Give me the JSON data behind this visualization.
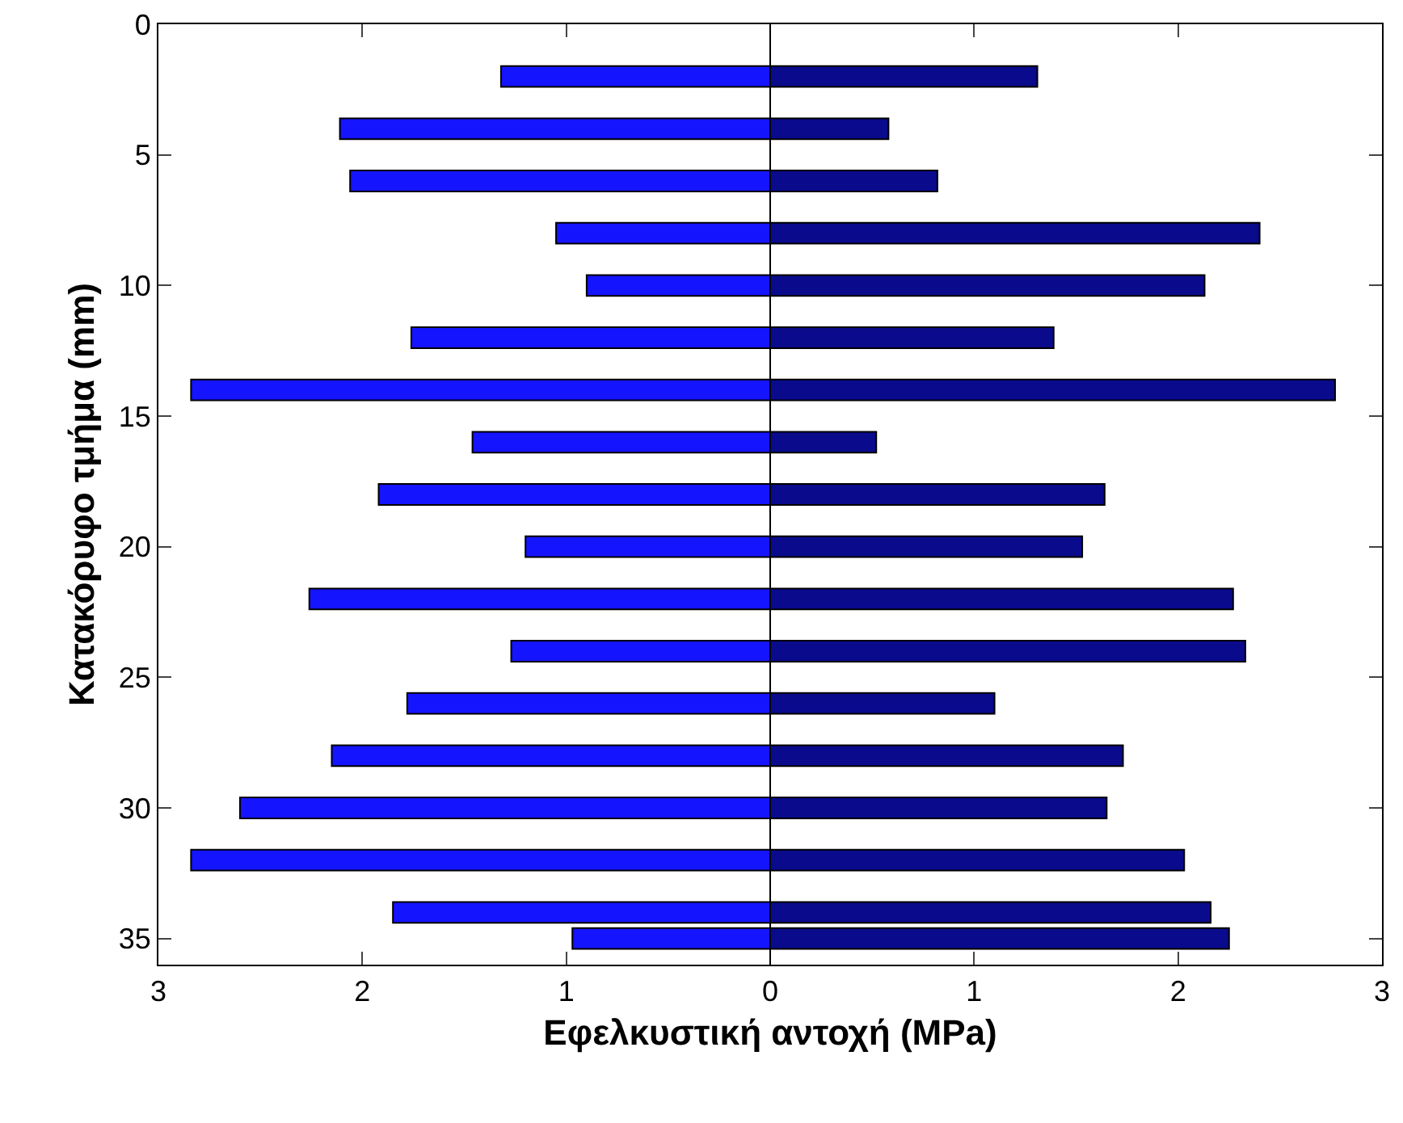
{
  "chart_data": {
    "type": "bar",
    "orientation": "horizontal",
    "xlabel": "Εφελκυστική αντοχή (MPa)",
    "ylabel": "Κατακόρυφο τμήμα (mm)",
    "x": [
      2,
      4,
      6,
      8,
      10,
      12,
      14,
      16,
      18,
      20,
      22,
      24,
      26,
      28,
      30,
      32,
      34,
      35
    ],
    "series": [
      {
        "color": "#1414ff",
        "values": [
          -1.32,
          -2.11,
          -2.06,
          -1.05,
          -0.9,
          -1.76,
          -2.84,
          -1.46,
          -1.92,
          -1.2,
          -2.26,
          -1.27,
          -1.78,
          -2.15,
          -2.6,
          -2.84,
          -1.85,
          -0.97
        ]
      },
      {
        "color": "#0a0a8c",
        "values": [
          1.31,
          0.58,
          0.82,
          2.4,
          2.13,
          1.39,
          2.77,
          0.52,
          1.64,
          1.53,
          2.27,
          2.33,
          1.1,
          1.73,
          1.65,
          2.03,
          2.16,
          2.25
        ]
      }
    ],
    "xlim": [
      -3,
      3
    ],
    "xticks": [
      {
        "value": -3,
        "label": "3"
      },
      {
        "value": -2,
        "label": "2"
      },
      {
        "value": -1,
        "label": "1"
      },
      0,
      1,
      2,
      3
    ],
    "ylim": [
      36,
      0
    ],
    "yticks": [
      0,
      5,
      10,
      15,
      20,
      25,
      30,
      35
    ],
    "grid": false,
    "stacked": true,
    "ref_lines": [
      {
        "axis": "x",
        "value": 0,
        "color": "#000000"
      }
    ]
  }
}
